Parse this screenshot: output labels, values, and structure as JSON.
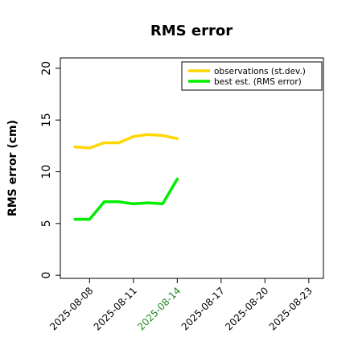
{
  "chart_data": {
    "type": "line",
    "title": "RMS error",
    "xlabel": "",
    "ylabel": "RMS error (cm)",
    "x": [
      "2025-08-07",
      "2025-08-08",
      "2025-08-09",
      "2025-08-10",
      "2025-08-11",
      "2025-08-12",
      "2025-08-13",
      "2025-08-14"
    ],
    "series": [
      {
        "name": "observations (st.dev.)",
        "color": "#ffd700",
        "values": [
          12.4,
          12.3,
          12.8,
          12.8,
          13.4,
          13.6,
          13.5,
          13.2
        ]
      },
      {
        "name": "best est. (RMS error)",
        "color": "#00ee00",
        "values": [
          5.4,
          5.4,
          7.1,
          7.1,
          6.9,
          7.0,
          6.9,
          9.3
        ]
      }
    ],
    "xlim": [
      "2025-08-06",
      "2025-08-24"
    ],
    "ylim": [
      -0.3,
      21
    ],
    "y_ticks": [
      "0",
      "5",
      "10",
      "15",
      "20"
    ],
    "x_ticks": [
      {
        "date": "2025-08-08",
        "label": "2025-08-08",
        "color": "#000000"
      },
      {
        "date": "2025-08-11",
        "label": "2025-08-11",
        "color": "#000000"
      },
      {
        "date": "2025-08-14",
        "label": "2025-08-14",
        "color": "#228b22"
      },
      {
        "date": "2025-08-17",
        "label": "2025-08-17",
        "color": "#000000"
      },
      {
        "date": "2025-08-20",
        "label": "2025-08-20",
        "color": "#000000"
      },
      {
        "date": "2025-08-23",
        "label": "2025-08-23",
        "color": "#000000"
      }
    ],
    "grid": false,
    "legend_position": "top-right"
  }
}
